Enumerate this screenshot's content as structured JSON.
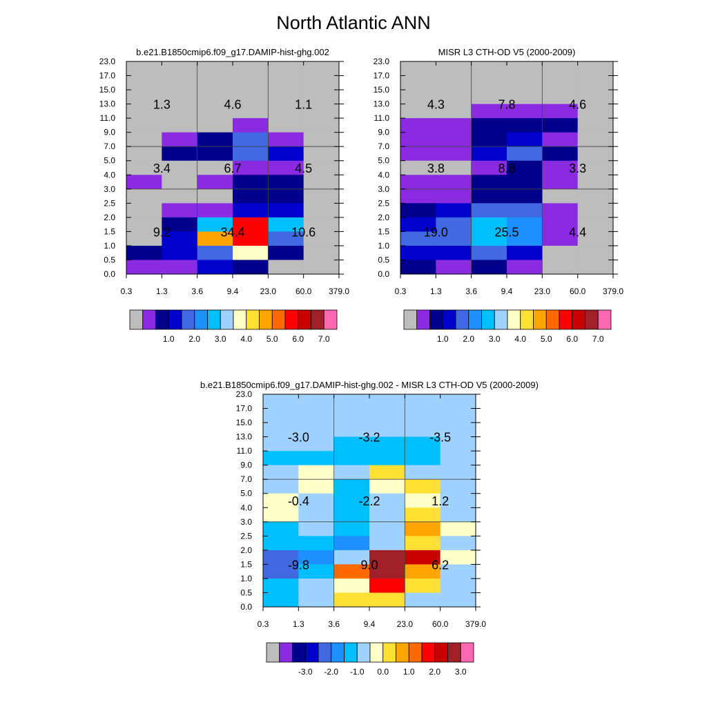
{
  "main_title": "North Atlantic ANN",
  "chart_data": [
    {
      "type": "heatmap",
      "title": "b.e21.B1850cmip6.f09_g17.DAMIP-hist-ghg.002",
      "x_tick_labels": [
        "0.3",
        "1.3",
        "3.6",
        "9.4",
        "23.0",
        "60.0",
        "379.0"
      ],
      "y_tick_labels": [
        "0.0",
        "0.5",
        "1.0",
        "1.5",
        "2.0",
        "2.5",
        "3.0",
        "4.0",
        "5.0",
        "7.0",
        "9.0",
        "11.0",
        "13.0",
        "15.0",
        "17.0",
        "23.0"
      ],
      "cells": [
        [
          "gray",
          "gray",
          "gray",
          "gray",
          "gray",
          "gray"
        ],
        [
          "gray",
          "gray",
          "gray",
          "gray",
          "gray",
          "gray"
        ],
        [
          "gray",
          "gray",
          "gray",
          "gray",
          "gray",
          "gray"
        ],
        [
          "gray",
          "gray",
          "gray",
          "gray",
          "gray",
          "gray"
        ],
        [
          "gray",
          "gray",
          "gray",
          "purple",
          "gray",
          "gray"
        ],
        [
          "gray",
          "purple",
          "darkblue",
          "royalblue",
          "purple",
          "gray"
        ],
        [
          "gray",
          "darkblue",
          "darkblue",
          "royalblue",
          "blue",
          "gray"
        ],
        [
          "gray",
          "gray",
          "gray",
          "purple",
          "purple",
          "gray"
        ],
        [
          "purple",
          "gray",
          "purple",
          "darkblue",
          "darkblue",
          "gray"
        ],
        [
          "gray",
          "gray",
          "gray",
          "darkblue",
          "darkblue",
          "gray"
        ],
        [
          "gray",
          "purple",
          "purple",
          "blue",
          "blue",
          "gray"
        ],
        [
          "gray",
          "darkblue",
          "deepskyblue",
          "red",
          "deepskyblue",
          "gray"
        ],
        [
          "gray",
          "blue",
          "orange",
          "red",
          "royalblue",
          "gray"
        ],
        [
          "darkblue",
          "blue",
          "royalblue",
          "lightyellow",
          "darkblue",
          "gray"
        ],
        [
          "purple",
          "purple",
          "blue",
          "darkblue",
          "gray",
          "gray"
        ]
      ],
      "box_values": [
        [
          "1.3",
          "4.6",
          "1.1"
        ],
        [
          "3.4",
          "6.7",
          "4.5"
        ],
        [
          "9.2",
          "34.4",
          "10.6"
        ]
      ],
      "colorbar": {
        "colors": [
          "#bdbdbd",
          "#8a2be2",
          "#00008b",
          "#0000cd",
          "#4169e1",
          "#1e90ff",
          "#00bfff",
          "#a0d2ff",
          "#ffffc8",
          "#ffe135",
          "#ffa500",
          "#ff6a00",
          "#ff0000",
          "#c80000",
          "#a0202a",
          "#ff69b4"
        ],
        "labels": [
          "1.0",
          "2.0",
          "3.0",
          "4.0",
          "5.0",
          "6.0",
          "7.0"
        ]
      }
    },
    {
      "type": "heatmap",
      "title": "MISR L3 CTH-OD V5 (2000-2009)",
      "x_tick_labels": [
        "0.3",
        "1.3",
        "3.6",
        "9.4",
        "23.0",
        "60.0",
        "379.0"
      ],
      "y_tick_labels": [
        "0.0",
        "0.5",
        "1.0",
        "1.5",
        "2.0",
        "2.5",
        "3.0",
        "4.0",
        "5.0",
        "7.0",
        "9.0",
        "11.0",
        "13.0",
        "15.0",
        "17.0",
        "23.0"
      ],
      "cells": [
        [
          "gray",
          "gray",
          "gray",
          "gray",
          "gray",
          "gray"
        ],
        [
          "gray",
          "gray",
          "gray",
          "gray",
          "gray",
          "gray"
        ],
        [
          "gray",
          "gray",
          "gray",
          "gray",
          "gray",
          "gray"
        ],
        [
          "gray",
          "gray",
          "purple",
          "purple",
          "purple",
          "gray"
        ],
        [
          "purple",
          "purple",
          "darkblue",
          "darkblue",
          "darkblue",
          "gray"
        ],
        [
          "purple",
          "purple",
          "darkblue",
          "blue",
          "purple",
          "gray"
        ],
        [
          "purple",
          "purple",
          "blue",
          "royalblue",
          "darkblue",
          "gray"
        ],
        [
          "gray",
          "gray",
          "purple",
          "darkblue",
          "purple",
          "gray"
        ],
        [
          "purple",
          "purple",
          "darkblue",
          "darkblue",
          "purple",
          "gray"
        ],
        [
          "purple",
          "purple",
          "darkblue",
          "darkblue",
          "gray",
          "gray"
        ],
        [
          "darkblue",
          "blue",
          "royalblue",
          "royalblue",
          "purple",
          "gray"
        ],
        [
          "blue",
          "royalblue",
          "deepskyblue",
          "dodgerblue",
          "purple",
          "gray"
        ],
        [
          "royalblue",
          "royalblue",
          "deepskyblue",
          "dodgerblue",
          "purple",
          "gray"
        ],
        [
          "blue",
          "blue",
          "royalblue",
          "blue",
          "gray",
          "gray"
        ],
        [
          "darkblue",
          "purple",
          "darkblue",
          "purple",
          "gray",
          "gray"
        ]
      ],
      "box_values": [
        [
          "4.3",
          "7.8",
          "4.6"
        ],
        [
          "3.8",
          "8.8",
          "3.3"
        ],
        [
          "19.0",
          "25.5",
          "4.4"
        ]
      ],
      "colorbar": {
        "colors": [
          "#bdbdbd",
          "#8a2be2",
          "#00008b",
          "#0000cd",
          "#4169e1",
          "#1e90ff",
          "#00bfff",
          "#a0d2ff",
          "#ffffc8",
          "#ffe135",
          "#ffa500",
          "#ff6a00",
          "#ff0000",
          "#c80000",
          "#a0202a",
          "#ff69b4"
        ],
        "labels": [
          "1.0",
          "2.0",
          "3.0",
          "4.0",
          "5.0",
          "6.0",
          "7.0"
        ]
      }
    },
    {
      "type": "heatmap",
      "title": "b.e21.B1850cmip6.f09_g17.DAMIP-hist-ghg.002 - MISR L3 CTH-OD V5 (2000-2009)",
      "x_tick_labels": [
        "0.3",
        "1.3",
        "3.6",
        "9.4",
        "23.0",
        "60.0",
        "379.0"
      ],
      "y_tick_labels": [
        "0.0",
        "0.5",
        "1.0",
        "1.5",
        "2.0",
        "2.5",
        "3.0",
        "4.0",
        "5.0",
        "7.0",
        "9.0",
        "11.0",
        "13.0",
        "15.0",
        "17.0",
        "23.0"
      ],
      "cells": [
        [
          "lightblue",
          "lightblue",
          "lightblue",
          "lightblue",
          "lightblue",
          "lightblue"
        ],
        [
          "lightblue",
          "lightblue",
          "lightblue",
          "lightblue",
          "lightblue",
          "lightblue"
        ],
        [
          "lightblue",
          "lightblue",
          "lightblue",
          "lightblue",
          "lightblue",
          "lightblue"
        ],
        [
          "lightblue",
          "lightblue",
          "deepskyblue",
          "deepskyblue",
          "deepskyblue",
          "lightblue"
        ],
        [
          "deepskyblue",
          "deepskyblue",
          "deepskyblue",
          "deepskyblue",
          "deepskyblue",
          "lightblue"
        ],
        [
          "lightblue",
          "lightyellow",
          "lightblue",
          "yellow",
          "lightblue",
          "lightblue"
        ],
        [
          "lightblue",
          "lightyellow",
          "deepskyblue",
          "lightyellow",
          "yellow",
          "lightblue"
        ],
        [
          "lightyellow",
          "lightblue",
          "deepskyblue",
          "lightblue",
          "lightyellow",
          "lightblue"
        ],
        [
          "lightyellow",
          "lightblue",
          "deepskyblue",
          "lightblue",
          "yellow",
          "lightblue"
        ],
        [
          "deepskyblue",
          "lightblue",
          "deepskyblue",
          "lightblue",
          "orange",
          "lightyellow"
        ],
        [
          "deepskyblue",
          "deepskyblue",
          "dodgerblue",
          "lightblue",
          "yellow",
          "lightblue"
        ],
        [
          "royalblue",
          "dodgerblue",
          "lightblue",
          "brown",
          "darkred",
          "lightyellow"
        ],
        [
          "royalblue",
          "deepskyblue",
          "darkorange",
          "brown",
          "orange",
          "lightblue"
        ],
        [
          "deepskyblue",
          "lightblue",
          "lightyellow",
          "red",
          "yellow",
          "lightblue"
        ],
        [
          "deepskyblue",
          "lightblue",
          "yellow",
          "yellow",
          "lightblue",
          "lightblue"
        ]
      ],
      "box_values": [
        [
          "-3.0",
          "-3.2",
          "-3.5"
        ],
        [
          "-0.4",
          "-2.2",
          "1.2"
        ],
        [
          "-9.8",
          "9.0",
          "6.2"
        ]
      ],
      "colorbar": {
        "colors": [
          "#bdbdbd",
          "#8a2be2",
          "#00008b",
          "#0000cd",
          "#4169e1",
          "#1e90ff",
          "#00bfff",
          "#a0d2ff",
          "#ffffc8",
          "#ffe135",
          "#ffa500",
          "#ff6a00",
          "#ff0000",
          "#c80000",
          "#a0202a",
          "#ff69b4"
        ],
        "labels": [
          "-3.0",
          "-2.0",
          "-1.0",
          "0.0",
          "1.0",
          "2.0",
          "3.0"
        ]
      }
    }
  ],
  "colors": {
    "gray": "#bdbdbd",
    "purple": "#8a2be2",
    "darkblue": "#00008b",
    "blue": "#0000cd",
    "royalblue": "#4169e1",
    "dodgerblue": "#1e90ff",
    "deepskyblue": "#00bfff",
    "lightblue": "#a0d2ff",
    "lightyellow": "#ffffc8",
    "yellow": "#ffe135",
    "orange": "#ffa500",
    "darkorange": "#ff6a00",
    "red": "#ff0000",
    "darkred": "#c80000",
    "brown": "#a0202a",
    "pink": "#ff69b4"
  }
}
